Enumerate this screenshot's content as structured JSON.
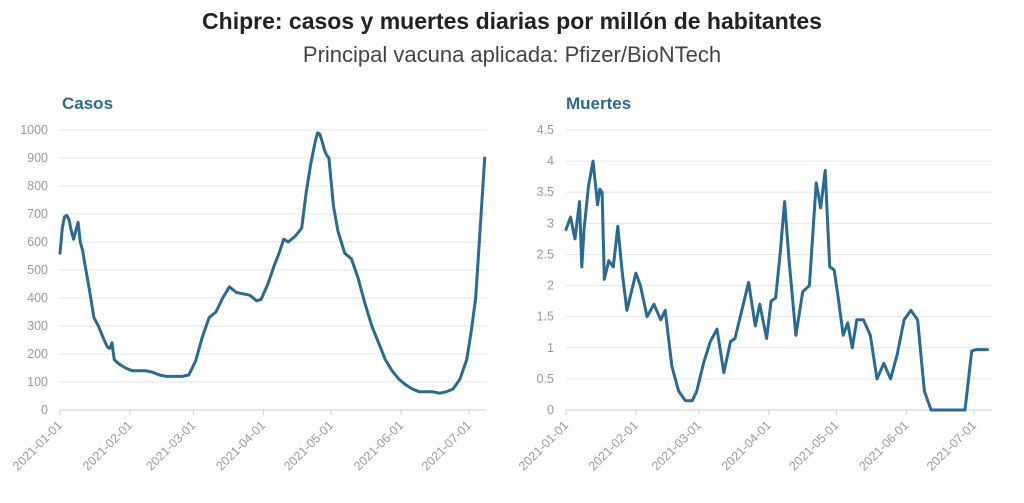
{
  "title": "Chipre: casos y muertes diarias por millón de habitantes",
  "subtitle": "Principal vacuna aplicada: Pfizer/BioNTech",
  "colors": {
    "series": "#2b6a93",
    "panel_title": "#2b6a93"
  },
  "chart_data": [
    {
      "type": "line",
      "title": "Casos",
      "ylim": [
        0,
        1000
      ],
      "yticks": [
        "0",
        "100",
        "200",
        "300",
        "400",
        "500",
        "600",
        "700",
        "800",
        "900",
        "1000"
      ],
      "xticks": [
        "2021-01-01",
        "2021-02-01",
        "2021-03-01",
        "2021-04-01",
        "2021-05-01",
        "2021-06-01",
        "2021-07-01"
      ],
      "grid": true,
      "x": [
        "2021-01-01",
        "2021-01-02",
        "2021-01-03",
        "2021-01-04",
        "2021-01-05",
        "2021-01-06",
        "2021-01-07",
        "2021-01-08",
        "2021-01-09",
        "2021-01-10",
        "2021-01-11",
        "2021-01-12",
        "2021-01-14",
        "2021-01-16",
        "2021-01-18",
        "2021-01-20",
        "2021-01-22",
        "2021-01-23",
        "2021-01-24",
        "2021-01-25",
        "2021-01-27",
        "2021-01-30",
        "2021-02-02",
        "2021-02-05",
        "2021-02-08",
        "2021-02-11",
        "2021-02-14",
        "2021-02-17",
        "2021-02-20",
        "2021-02-24",
        "2021-02-27",
        "2021-03-02",
        "2021-03-05",
        "2021-03-08",
        "2021-03-11",
        "2021-03-14",
        "2021-03-17",
        "2021-03-20",
        "2021-03-23",
        "2021-03-26",
        "2021-03-29",
        "2021-03-31",
        "2021-04-03",
        "2021-04-06",
        "2021-04-08",
        "2021-04-10",
        "2021-04-12",
        "2021-04-15",
        "2021-04-18",
        "2021-04-20",
        "2021-04-22",
        "2021-04-24",
        "2021-04-25",
        "2021-04-26",
        "2021-04-27",
        "2021-04-28",
        "2021-04-29",
        "2021-04-30",
        "2021-05-02",
        "2021-05-04",
        "2021-05-07",
        "2021-05-10",
        "2021-05-13",
        "2021-05-16",
        "2021-05-19",
        "2021-05-22",
        "2021-05-25",
        "2021-05-28",
        "2021-05-31",
        "2021-06-03",
        "2021-06-06",
        "2021-06-09",
        "2021-06-12",
        "2021-06-15",
        "2021-06-18",
        "2021-06-21",
        "2021-06-24",
        "2021-06-27",
        "2021-06-30",
        "2021-07-02",
        "2021-07-04",
        "2021-07-06",
        "2021-07-08"
      ],
      "series": [
        {
          "values": [
            560,
            650,
            690,
            695,
            680,
            640,
            610,
            640,
            670,
            600,
            570,
            520,
            430,
            330,
            300,
            260,
            225,
            220,
            240,
            180,
            165,
            150,
            140,
            140,
            140,
            135,
            125,
            120,
            120,
            120,
            125,
            175,
            260,
            330,
            350,
            400,
            440,
            420,
            415,
            410,
            390,
            395,
            450,
            520,
            560,
            610,
            600,
            620,
            650,
            780,
            880,
            960,
            990,
            985,
            960,
            930,
            910,
            900,
            730,
            640,
            560,
            540,
            470,
            380,
            300,
            240,
            180,
            140,
            110,
            90,
            75,
            65,
            65,
            65,
            60,
            65,
            75,
            110,
            180,
            280,
            400,
            650,
            900
          ]
        }
      ]
    },
    {
      "type": "line",
      "title": "Muertes",
      "ylim": [
        0,
        4.5
      ],
      "yticks": [
        "0",
        "0.5",
        "1",
        "1.5",
        "2",
        "2.5",
        "3",
        "3.5",
        "4",
        "4.5"
      ],
      "xticks": [
        "2021-01-01",
        "2021-02-01",
        "2021-03-01",
        "2021-04-01",
        "2021-05-01",
        "2021-06-01",
        "2021-07-01"
      ],
      "grid": true,
      "x": [
        "2021-01-01",
        "2021-01-03",
        "2021-01-05",
        "2021-01-07",
        "2021-01-08",
        "2021-01-09",
        "2021-01-11",
        "2021-01-13",
        "2021-01-15",
        "2021-01-16",
        "2021-01-17",
        "2021-01-18",
        "2021-01-20",
        "2021-01-22",
        "2021-01-24",
        "2021-01-26",
        "2021-01-28",
        "2021-02-01",
        "2021-02-03",
        "2021-02-06",
        "2021-02-09",
        "2021-02-12",
        "2021-02-14",
        "2021-02-17",
        "2021-02-20",
        "2021-02-23",
        "2021-02-26",
        "2021-02-28",
        "2021-03-03",
        "2021-03-06",
        "2021-03-09",
        "2021-03-12",
        "2021-03-15",
        "2021-03-17",
        "2021-03-20",
        "2021-03-23",
        "2021-03-26",
        "2021-03-28",
        "2021-03-31",
        "2021-04-02",
        "2021-04-04",
        "2021-04-06",
        "2021-04-08",
        "2021-04-10",
        "2021-04-13",
        "2021-04-16",
        "2021-04-19",
        "2021-04-22",
        "2021-04-24",
        "2021-04-26",
        "2021-04-28",
        "2021-04-30",
        "2021-05-02",
        "2021-05-04",
        "2021-05-06",
        "2021-05-08",
        "2021-05-10",
        "2021-05-13",
        "2021-05-16",
        "2021-05-19",
        "2021-05-22",
        "2021-05-25",
        "2021-05-28",
        "2021-05-31",
        "2021-06-03",
        "2021-06-06",
        "2021-06-09",
        "2021-06-12",
        "2021-06-15",
        "2021-06-18",
        "2021-06-21",
        "2021-06-24",
        "2021-06-27",
        "2021-06-30",
        "2021-07-02",
        "2021-07-04",
        "2021-07-07"
      ],
      "series": [
        {
          "values": [
            2.9,
            3.1,
            2.75,
            3.35,
            2.3,
            2.9,
            3.6,
            4.0,
            3.3,
            3.55,
            3.5,
            2.1,
            2.4,
            2.3,
            2.95,
            2.2,
            1.6,
            2.2,
            2.0,
            1.5,
            1.7,
            1.45,
            1.6,
            0.7,
            0.3,
            0.15,
            0.15,
            0.3,
            0.75,
            1.1,
            1.3,
            0.6,
            1.1,
            1.15,
            1.6,
            2.05,
            1.35,
            1.7,
            1.15,
            1.75,
            1.8,
            2.5,
            3.35,
            2.4,
            1.2,
            1.9,
            2.0,
            3.65,
            3.25,
            3.85,
            2.3,
            2.25,
            1.75,
            1.2,
            1.4,
            1.0,
            1.45,
            1.45,
            1.2,
            0.5,
            0.75,
            0.5,
            0.9,
            1.45,
            1.6,
            1.45,
            0.3,
            0.0,
            0.0,
            0.0,
            0.0,
            0.0,
            0.0,
            0.95,
            0.97,
            0.97,
            0.97
          ]
        }
      ]
    }
  ]
}
